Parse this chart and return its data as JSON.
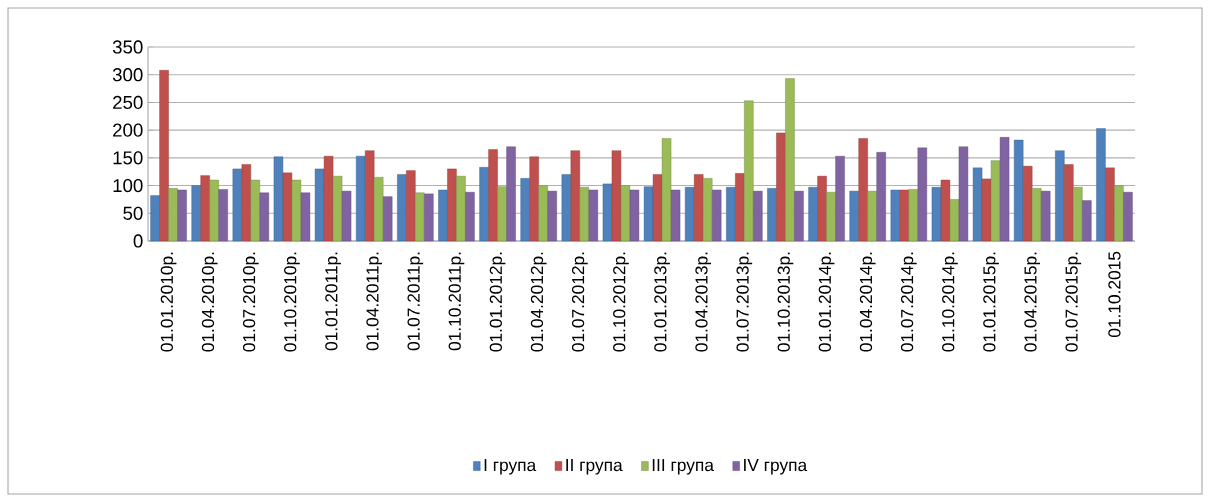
{
  "chart_data": {
    "type": "bar",
    "categories": [
      "01.01.2010р.",
      "01.04.2010р.",
      "01.07.2010р.",
      "01.10.2010р.",
      "01.01.2011р.",
      "01.04.2011р.",
      "01.07.2011р.",
      "01.10.2011р.",
      "01.01.2012р.",
      "01.04.2012р.",
      "01.07.2012р.",
      "01.10.2012р.",
      "01.01.2013р.",
      "01.04.2013р.",
      "01.07.2013р.",
      "01.10.2013р.",
      "01.01.2014р.",
      "01.04.2014р.",
      "01.07.2014р.",
      "01.10.2014р.",
      "01.01.2015р.",
      "01.04.2015р.",
      "01.07.2015р.",
      "01.10.2015"
    ],
    "series": [
      {
        "name": "I група",
        "color": "#4f81bd",
        "values": [
          82,
          100,
          130,
          152,
          130,
          153,
          120,
          92,
          133,
          113,
          120,
          103,
          98,
          97,
          97,
          95,
          97,
          90,
          92,
          97,
          132,
          182,
          163,
          203
        ]
      },
      {
        "name": "II група",
        "color": "#c0504d",
        "values": [
          308,
          118,
          138,
          123,
          153,
          163,
          127,
          130,
          165,
          152,
          163,
          163,
          120,
          120,
          122,
          195,
          117,
          185,
          92,
          110,
          112,
          135,
          138,
          132
        ]
      },
      {
        "name": "III група",
        "color": "#9bbb59",
        "values": [
          95,
          110,
          110,
          110,
          117,
          115,
          87,
          117,
          98,
          100,
          97,
          100,
          185,
          113,
          253,
          293,
          88,
          90,
          93,
          75,
          145,
          95,
          97,
          100
        ]
      },
      {
        "name": "IV група",
        "color": "#8064a2",
        "values": [
          92,
          93,
          87,
          87,
          90,
          80,
          85,
          88,
          170,
          90,
          92,
          92,
          92,
          92,
          90,
          90,
          153,
          160,
          168,
          170,
          187,
          90,
          73,
          88
        ]
      }
    ],
    "ylim": [
      0,
      350
    ],
    "yticks": [
      0,
      50,
      100,
      150,
      200,
      250,
      300,
      350
    ],
    "grid": "y",
    "legend": "bottom"
  }
}
